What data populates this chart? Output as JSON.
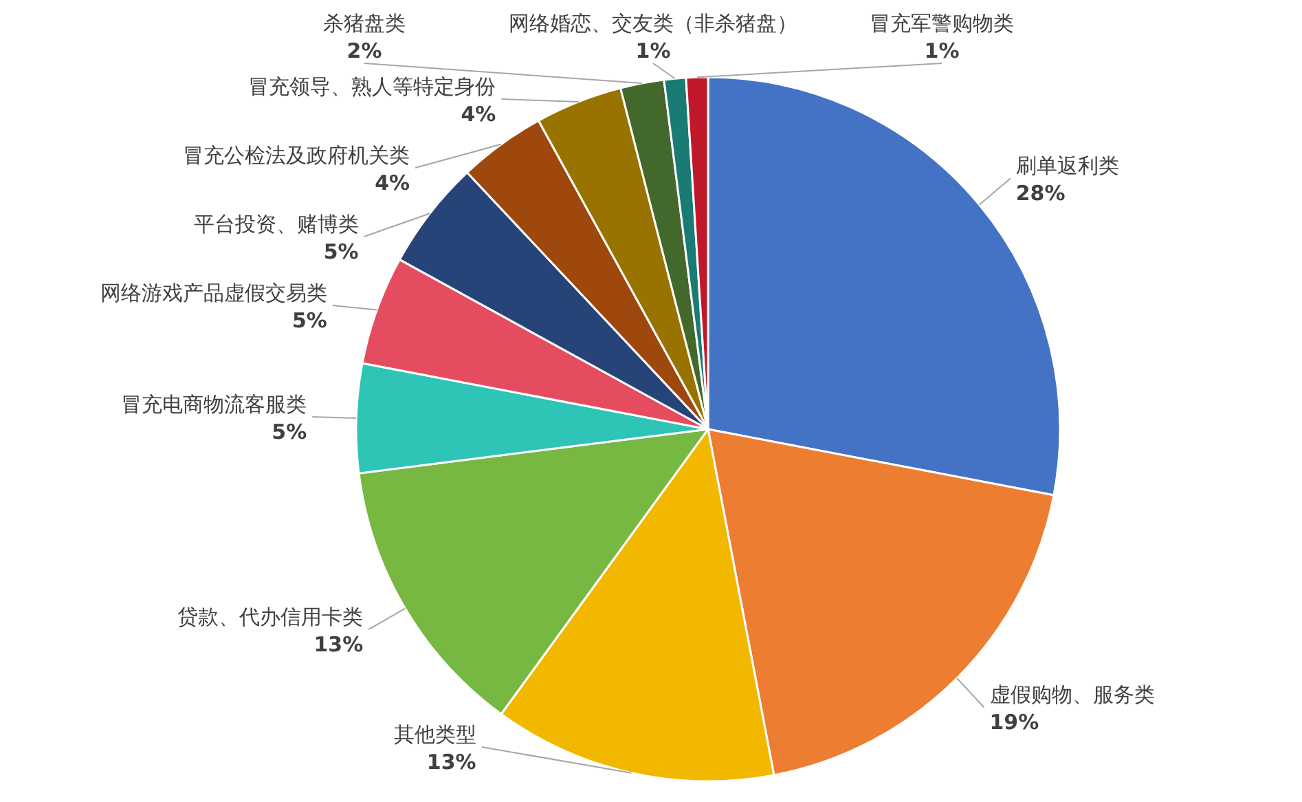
{
  "chart_data": {
    "type": "pie",
    "categories": [
      "刷单返利类",
      "虚假购物、服务类",
      "其他类型",
      "贷款、代办信用卡类",
      "冒充电商物流客服类",
      "网络游戏产品虚假交易类",
      "平台投资、赌博类",
      "冒充公检法及政府机关类",
      "冒充领导、熟人等特定身份",
      "杀猪盘类",
      "网络婚恋、交友类（非杀猪盘）",
      "冒充军警购物类"
    ],
    "values": [
      28,
      19,
      13,
      13,
      5,
      5,
      5,
      4,
      4,
      2,
      1,
      1
    ],
    "value_labels": [
      "28%",
      "19%",
      "13%",
      "13%",
      "5%",
      "5%",
      "5%",
      "4%",
      "4%",
      "2%",
      "1%",
      "1%"
    ],
    "colors": [
      "#4472c4",
      "#ed7d31",
      "#f2b800",
      "#77b843",
      "#2ec4b6",
      "#e64c5f",
      "#264478",
      "#9e480e",
      "#997300",
      "#43682b",
      "#1a7a74",
      "#c0182b"
    ]
  }
}
